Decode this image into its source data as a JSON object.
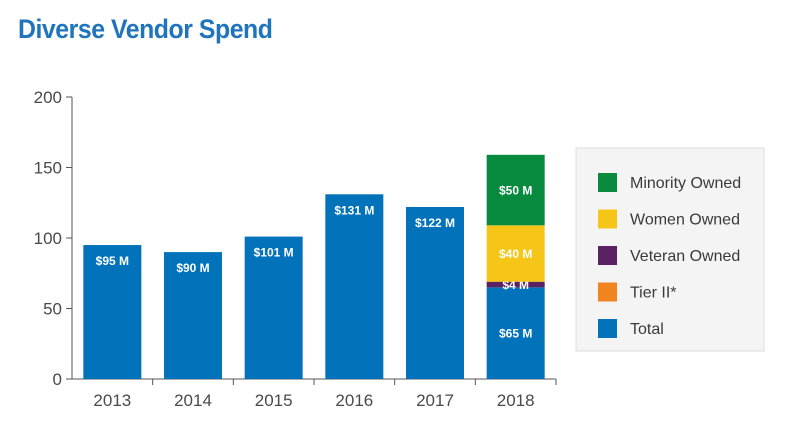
{
  "colors": {
    "title": "#1f74bb",
    "total": "#0272bb",
    "minority": "#078a3e",
    "women": "#f5c618",
    "veteran": "#5a2263",
    "tier2": "#f0841f",
    "axis": "#555555",
    "tick_text": "#4a4a4a",
    "legend_bg": "#f4f4f4",
    "legend_border": "#dcdcdc",
    "legend_text": "#3a3a3a"
  },
  "chart_data": {
    "type": "bar",
    "stacked": true,
    "title": "Diverse Vendor Spend",
    "xlabel": "",
    "ylabel": "",
    "categories": [
      "2013",
      "2014",
      "2015",
      "2016",
      "2017",
      "2018"
    ],
    "ylim": [
      0,
      200
    ],
    "yticks": [
      "0",
      "50",
      "100",
      "150",
      "200"
    ],
    "grid": false,
    "legend_position": "right",
    "series": [
      {
        "name": "Total",
        "color_key": "total",
        "values": [
          95,
          90,
          101,
          131,
          122,
          65
        ],
        "labels": [
          "$95 M",
          "$90 M",
          "$101 M",
          "$131 M",
          "$122 M",
          "$65 M"
        ]
      },
      {
        "name": "Tier II*",
        "color_key": "tier2",
        "values": [
          0,
          0,
          0,
          0,
          0,
          0
        ],
        "labels": [
          "",
          "",
          "",
          "",
          "",
          ""
        ]
      },
      {
        "name": "Veteran Owned",
        "color_key": "veteran",
        "values": [
          0,
          0,
          0,
          0,
          0,
          4
        ],
        "labels": [
          "",
          "",
          "",
          "",
          "",
          "$4 M"
        ]
      },
      {
        "name": "Women Owned",
        "color_key": "women",
        "values": [
          0,
          0,
          0,
          0,
          0,
          40
        ],
        "labels": [
          "",
          "",
          "",
          "",
          "",
          "$40 M"
        ]
      },
      {
        "name": "Minority Owned",
        "color_key": "minority",
        "values": [
          0,
          0,
          0,
          0,
          0,
          50
        ],
        "labels": [
          "",
          "",
          "",
          "",
          "",
          "$50 M"
        ]
      }
    ],
    "legend": [
      {
        "name": "Minority Owned",
        "color_key": "minority"
      },
      {
        "name": "Women Owned",
        "color_key": "women"
      },
      {
        "name": "Veteran Owned",
        "color_key": "veteran"
      },
      {
        "name": "Tier II*",
        "color_key": "tier2"
      },
      {
        "name": "Total",
        "color_key": "total"
      }
    ]
  }
}
